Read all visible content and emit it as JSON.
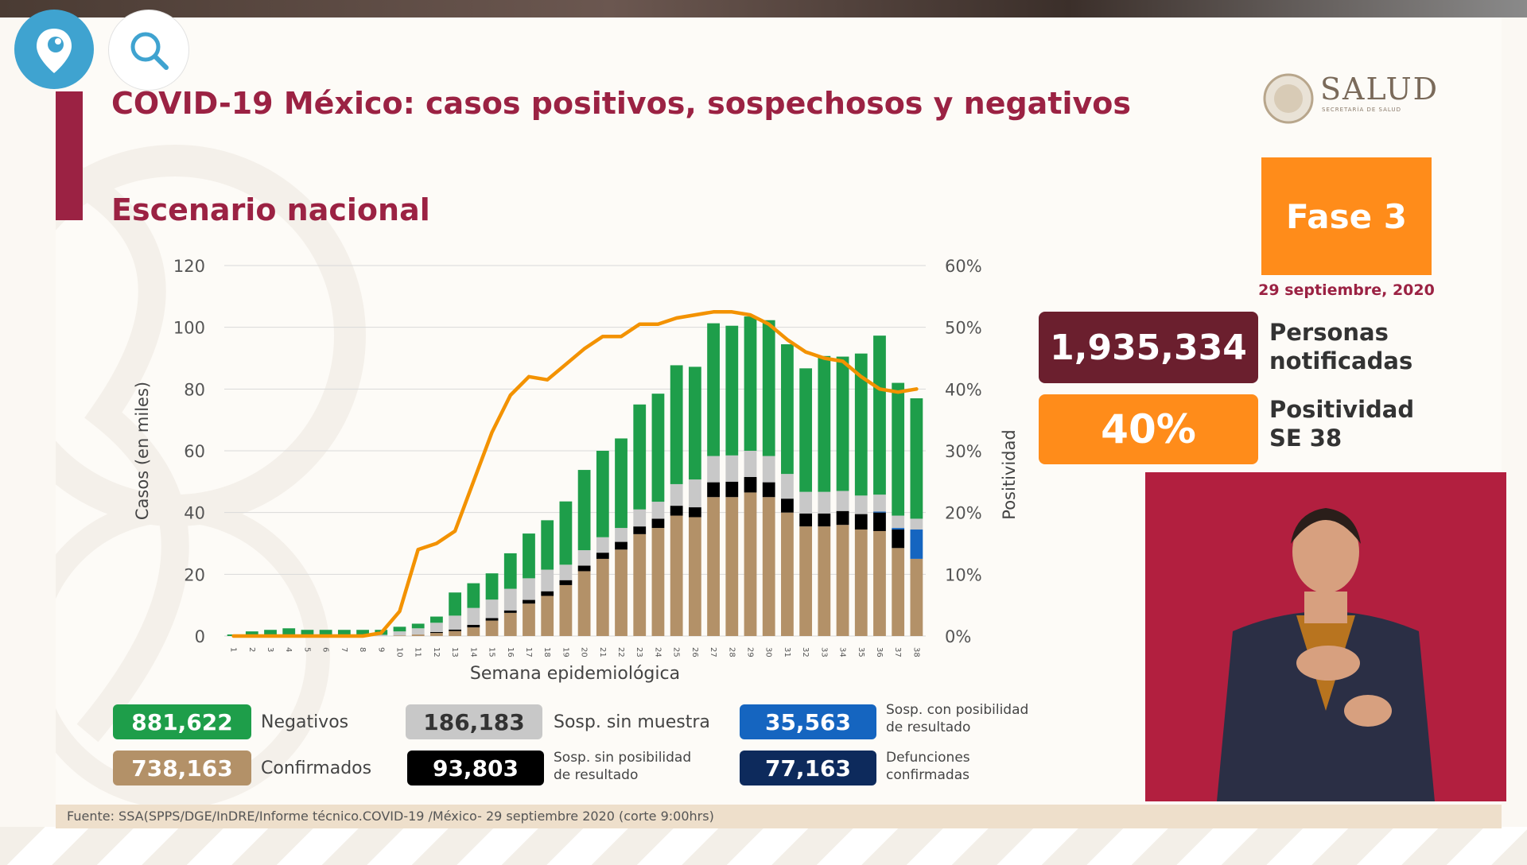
{
  "slide": {
    "title": "COVID-19 México: casos positivos, sospechosos y negativos",
    "subtitle": "Escenario nacional",
    "logo_text": "SALUD",
    "logo_subtext": "SECRETARÍA DE SALUD",
    "phase": "Fase 3",
    "date": "29 septiembre, 2020",
    "notified_value": "1,935,334",
    "notified_label": [
      "Personas",
      "notificadas"
    ],
    "positivity_value": "40%",
    "positivity_label": [
      "Positividad",
      "SE 38"
    ],
    "source": "Fuente: SSA(SPPS/DGE/InDRE/Informe técnico.COVID-19 /México- 29 septiembre 2020 (corte 9:00hrs)"
  },
  "legend": {
    "negativos": {
      "value": "881,622",
      "label": "Negativos",
      "color": "#1e9e4a"
    },
    "confirmados": {
      "value": "738,163",
      "label": "Confirmados",
      "color": "#b39168"
    },
    "sosp_sin_muestra": {
      "value": "186,183",
      "label": "Sosp. sin muestra",
      "color": "#c8c8c8"
    },
    "sosp_sin_posibilidad": {
      "value": "93,803",
      "label": [
        "Sosp. sin posibilidad",
        "de resultado"
      ],
      "color": "#000000"
    },
    "sosp_con_posibilidad": {
      "value": "35,563",
      "label": [
        "Sosp. con posibilidad",
        "de resultado"
      ],
      "color": "#1565c0"
    },
    "defunciones": {
      "value": "77,163",
      "label": [
        "Defunciones",
        "confirmadas"
      ],
      "color": "#0d2a5c"
    }
  },
  "colors": {
    "accent": "#9b2243",
    "orange": "#ff8c1a",
    "notified": "#6b1f2e"
  },
  "chart_data": {
    "type": "bar",
    "stacked": true,
    "xlabel": "Semana epidemiológica",
    "ylabel": "Casos (en miles)",
    "y2label": "Positividad",
    "ylim": [
      0,
      120
    ],
    "yticks": [
      0,
      20,
      40,
      60,
      80,
      100,
      120
    ],
    "y2lim": [
      0,
      60
    ],
    "y2ticks": [
      "0%",
      "10%",
      "20%",
      "30%",
      "40%",
      "50%",
      "60%"
    ],
    "categories": [
      "1",
      "2",
      "3",
      "4",
      "5",
      "6",
      "7",
      "8",
      "9",
      "10",
      "11",
      "12",
      "13",
      "14",
      "15",
      "16",
      "17",
      "18",
      "19",
      "20",
      "21",
      "22",
      "23",
      "24",
      "25",
      "26",
      "27",
      "28",
      "29",
      "30",
      "31",
      "32",
      "33",
      "34",
      "35",
      "36",
      "37",
      "38"
    ],
    "series": [
      {
        "name": "Confirmados",
        "color": "#b39168",
        "values": [
          0,
          0,
          0,
          0,
          0,
          0,
          0,
          0,
          0,
          0.2,
          0.5,
          1,
          1.6,
          2.8,
          5,
          7.5,
          10.5,
          13,
          16.5,
          21,
          25,
          28,
          33,
          35,
          39,
          38.5,
          45,
          45,
          46.5,
          45,
          40,
          35.5,
          35.5,
          36,
          34.5,
          34,
          28.5,
          25
        ]
      },
      {
        "name": "Sosp. sin posibilidad de resultado",
        "color": "#000000",
        "values": [
          0,
          0,
          0,
          0,
          0,
          0,
          0,
          0,
          0,
          0,
          0,
          0.3,
          0.5,
          0.8,
          0.8,
          0.8,
          1.2,
          1.5,
          1.6,
          1.8,
          2,
          2.5,
          2.5,
          3,
          3.2,
          3.2,
          4.8,
          5,
          5,
          4.8,
          4.5,
          4.2,
          4.2,
          4.5,
          5,
          6,
          6,
          0
        ]
      },
      {
        "name": "Sosp. con posibilidad de resultado",
        "color": "#1565c0",
        "values": [
          0,
          0,
          0,
          0,
          0,
          0,
          0,
          0,
          0,
          0,
          0,
          0,
          0,
          0,
          0,
          0,
          0,
          0,
          0,
          0,
          0,
          0,
          0,
          0,
          0,
          0,
          0,
          0,
          0,
          0,
          0,
          0,
          0,
          0,
          0,
          0.3,
          0.5,
          9.5
        ]
      },
      {
        "name": "Sosp. sin muestra",
        "color": "#c8c8c8",
        "values": [
          0,
          0,
          0,
          0,
          0,
          0,
          0,
          0,
          0.4,
          1.3,
          2,
          3,
          4.5,
          5.5,
          6,
          7,
          7,
          7,
          5,
          5,
          5,
          4.5,
          5.5,
          5.5,
          7,
          9,
          8.5,
          8.5,
          8.5,
          8.5,
          8,
          7,
          7,
          6.5,
          6,
          5.5,
          4,
          3.5
        ]
      },
      {
        "name": "Negativos",
        "color": "#1e9e4a",
        "values": [
          0.5,
          1.5,
          2,
          2.5,
          2,
          2,
          2,
          2,
          1.6,
          1.5,
          1.5,
          2,
          7.5,
          8,
          8.5,
          11.5,
          14.5,
          16,
          20.5,
          26,
          28,
          29,
          34,
          35,
          38.5,
          36.5,
          43,
          42,
          43.5,
          44,
          42,
          40,
          44,
          43.5,
          46,
          51.5,
          43,
          39
        ]
      }
    ],
    "line": {
      "name": "Positividad",
      "color": "#f39200",
      "values_pct": [
        0,
        0,
        0,
        0,
        0,
        0,
        0,
        0,
        0.5,
        4,
        14,
        15,
        17,
        25,
        33,
        39,
        42,
        41.5,
        44,
        46.5,
        48.5,
        48.5,
        50.5,
        50.5,
        51.5,
        52,
        52.5,
        52.5,
        52,
        50.5,
        48,
        46,
        45,
        44.5,
        42,
        40,
        39.5,
        40
      ]
    }
  }
}
